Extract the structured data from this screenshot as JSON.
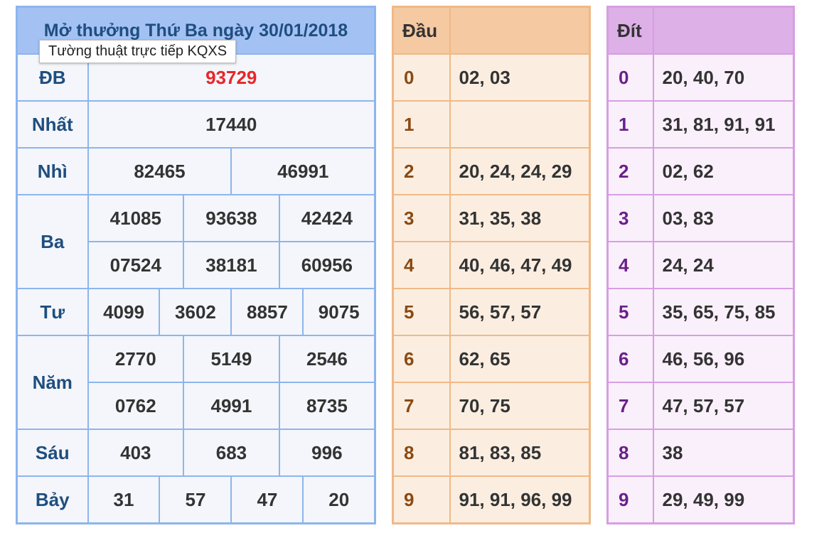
{
  "results": {
    "title": "Mở thưởng Thứ Ba ngày 30/01/2018",
    "prizes": {
      "db": {
        "label": "ĐB",
        "values": [
          "93729"
        ]
      },
      "nhat": {
        "label": "Nhất",
        "values": [
          "17440"
        ]
      },
      "nhi": {
        "label": "Nhì",
        "values": [
          "82465",
          "46991"
        ]
      },
      "ba": {
        "label": "Ba",
        "values": [
          "41085",
          "93638",
          "42424",
          "07524",
          "38181",
          "60956"
        ]
      },
      "tu": {
        "label": "Tư",
        "values": [
          "4099",
          "3602",
          "8857",
          "9075"
        ]
      },
      "nam": {
        "label": "Năm",
        "values": [
          "2770",
          "5149",
          "2546",
          "0762",
          "4991",
          "8735"
        ]
      },
      "sau": {
        "label": "Sáu",
        "values": [
          "403",
          "683",
          "996"
        ]
      },
      "bay": {
        "label": "Bảy",
        "values": [
          "31",
          "57",
          "47",
          "20"
        ]
      }
    }
  },
  "tooltip": "Tường thuật trực tiếp KQXS",
  "dau": {
    "header": "Đầu",
    "rows": [
      {
        "num": "0",
        "vals": "02, 03"
      },
      {
        "num": "1",
        "vals": ""
      },
      {
        "num": "2",
        "vals": "20, 24, 24, 29"
      },
      {
        "num": "3",
        "vals": "31, 35, 38"
      },
      {
        "num": "4",
        "vals": "40, 46, 47, 49"
      },
      {
        "num": "5",
        "vals": "56, 57, 57"
      },
      {
        "num": "6",
        "vals": "62, 65"
      },
      {
        "num": "7",
        "vals": "70, 75"
      },
      {
        "num": "8",
        "vals": "81, 83, 85"
      },
      {
        "num": "9",
        "vals": "91, 91, 96, 99"
      }
    ]
  },
  "dit": {
    "header": "Đít",
    "rows": [
      {
        "num": "0",
        "vals": "20, 40, 70"
      },
      {
        "num": "1",
        "vals": "31, 81, 91, 91"
      },
      {
        "num": "2",
        "vals": "02, 62"
      },
      {
        "num": "3",
        "vals": "03, 83"
      },
      {
        "num": "4",
        "vals": "24, 24"
      },
      {
        "num": "5",
        "vals": "35, 65, 75, 85"
      },
      {
        "num": "6",
        "vals": "46, 56, 96"
      },
      {
        "num": "7",
        "vals": "47, 57, 57"
      },
      {
        "num": "8",
        "vals": "38"
      },
      {
        "num": "9",
        "vals": "29, 49, 99"
      }
    ]
  },
  "colors": {
    "special": "#e8262a",
    "prize_label": "#1f4e7f",
    "results_border": "#8db5ee",
    "dau_border": "#f0b986",
    "dit_border": "#d79ee3"
  }
}
